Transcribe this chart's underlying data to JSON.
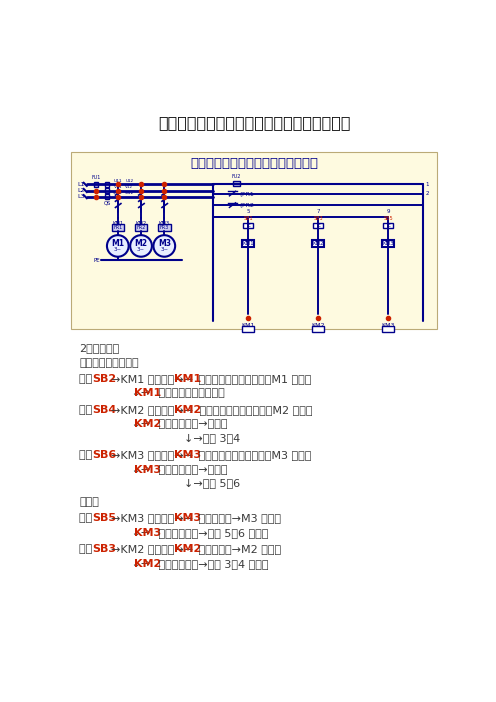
{
  "title": "课题五：三台电机顺序起动逆序停止控制线路",
  "diagram_title": "三台电机顺序起动逆序停止控制线路",
  "diagram_bg": "#FEFAE0",
  "section2_title": "2、工作原理",
  "startup_label": "起动：（合上ＱＳ）",
  "stop_label": "停止：",
  "text_color": "#3a3a3a",
  "red_color": "#8B0000",
  "blue_color": "#00008B",
  "page_bg": "#FFFFFF",
  "body_fontsize": 8.0,
  "title_fontsize": 11.5
}
